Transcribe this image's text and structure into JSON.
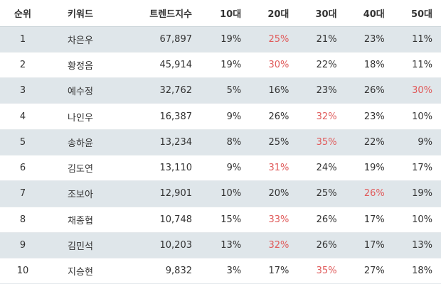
{
  "table": {
    "headers": [
      "순위",
      "키워드",
      "트렌드지수",
      "10대",
      "20대",
      "30대",
      "40대",
      "50대"
    ],
    "highlight_color": "#e05a5a",
    "rows": [
      {
        "rank": "1",
        "keyword": "차은우",
        "index": "67,897",
        "ages": [
          "19%",
          "25%",
          "21%",
          "23%",
          "11%"
        ],
        "highlight": 1
      },
      {
        "rank": "2",
        "keyword": "황정음",
        "index": "45,914",
        "ages": [
          "19%",
          "30%",
          "22%",
          "18%",
          "11%"
        ],
        "highlight": 1
      },
      {
        "rank": "3",
        "keyword": "예수정",
        "index": "32,762",
        "ages": [
          "5%",
          "16%",
          "23%",
          "26%",
          "30%"
        ],
        "highlight": 4
      },
      {
        "rank": "4",
        "keyword": "나인우",
        "index": "16,387",
        "ages": [
          "9%",
          "26%",
          "32%",
          "23%",
          "10%"
        ],
        "highlight": 2
      },
      {
        "rank": "5",
        "keyword": "송하윤",
        "index": "13,234",
        "ages": [
          "8%",
          "25%",
          "35%",
          "22%",
          "9%"
        ],
        "highlight": 2
      },
      {
        "rank": "6",
        "keyword": "김도연",
        "index": "13,110",
        "ages": [
          "9%",
          "31%",
          "24%",
          "19%",
          "17%"
        ],
        "highlight": 1
      },
      {
        "rank": "7",
        "keyword": "조보아",
        "index": "12,901",
        "ages": [
          "10%",
          "20%",
          "25%",
          "26%",
          "19%"
        ],
        "highlight": 3
      },
      {
        "rank": "8",
        "keyword": "채종협",
        "index": "10,748",
        "ages": [
          "15%",
          "33%",
          "26%",
          "17%",
          "10%"
        ],
        "highlight": 1
      },
      {
        "rank": "9",
        "keyword": "김민석",
        "index": "10,203",
        "ages": [
          "13%",
          "32%",
          "26%",
          "17%",
          "13%"
        ],
        "highlight": 1
      },
      {
        "rank": "10",
        "keyword": "지승현",
        "index": "9,832",
        "ages": [
          "3%",
          "17%",
          "35%",
          "27%",
          "18%"
        ],
        "highlight": 2
      }
    ]
  }
}
